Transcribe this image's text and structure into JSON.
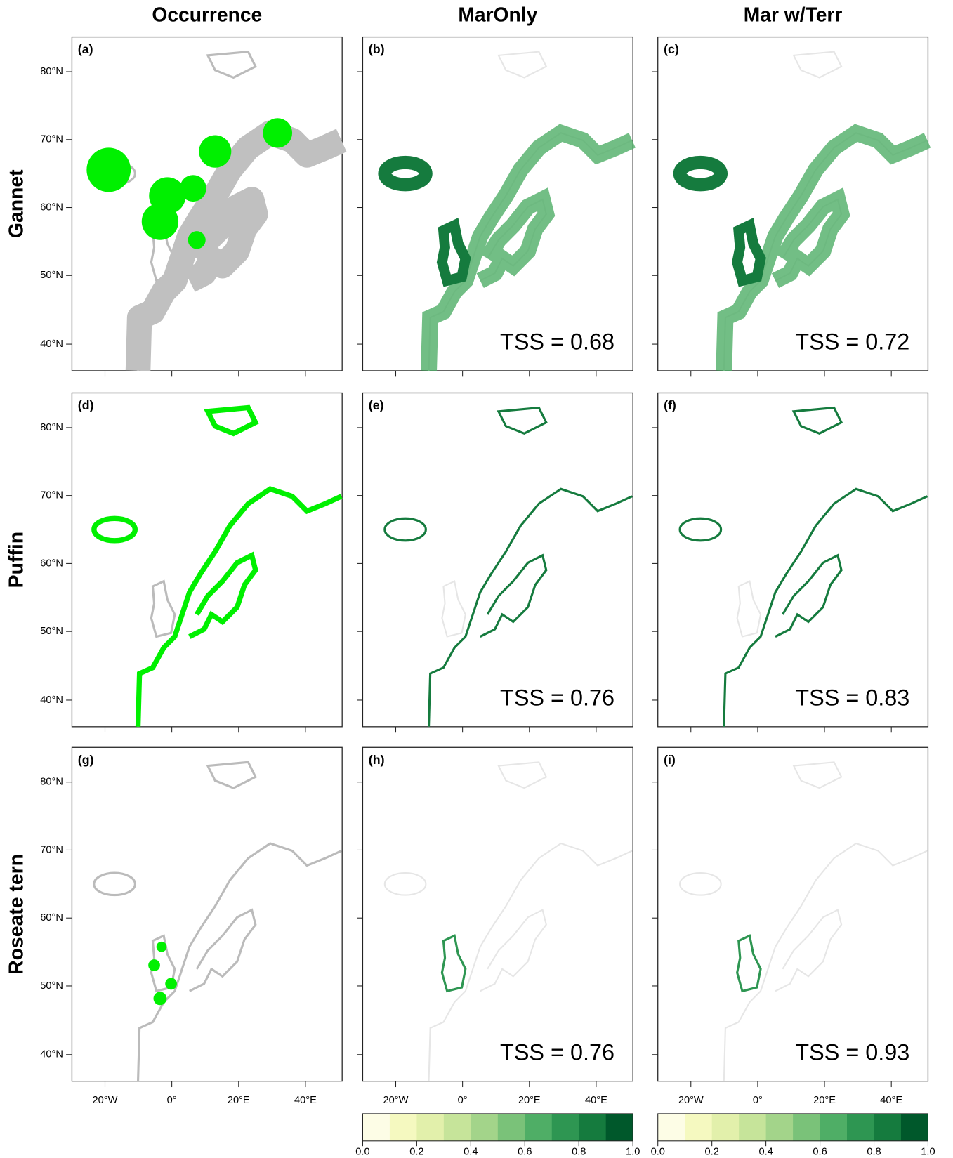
{
  "columns": [
    "Occurrence",
    "MarOnly",
    "Mar w/Terr"
  ],
  "rows": [
    "Gannet",
    "Puffin",
    "Roseate tern"
  ],
  "panels": [
    {
      "label": "(a)"
    },
    {
      "label": "(b)",
      "tss": "TSS = 0.68"
    },
    {
      "label": "(c)",
      "tss": "TSS = 0.72"
    },
    {
      "label": "(d)"
    },
    {
      "label": "(e)",
      "tss": "TSS = 0.76"
    },
    {
      "label": "(f)",
      "tss": "TSS = 0.83"
    },
    {
      "label": "(g)"
    },
    {
      "label": "(h)",
      "tss": "TSS = 0.76"
    },
    {
      "label": "(i)",
      "tss": "TSS = 0.93"
    }
  ],
  "lat_ticks": [
    "80°N",
    "70°N",
    "60°N",
    "50°N",
    "40°N"
  ],
  "lon_ticks": [
    "20°W",
    "0°",
    "20°E",
    "40°E"
  ],
  "colorbar": {
    "ticks": [
      "0.0",
      "0.2",
      "0.4",
      "0.6",
      "0.8",
      "1.0"
    ]
  }
}
